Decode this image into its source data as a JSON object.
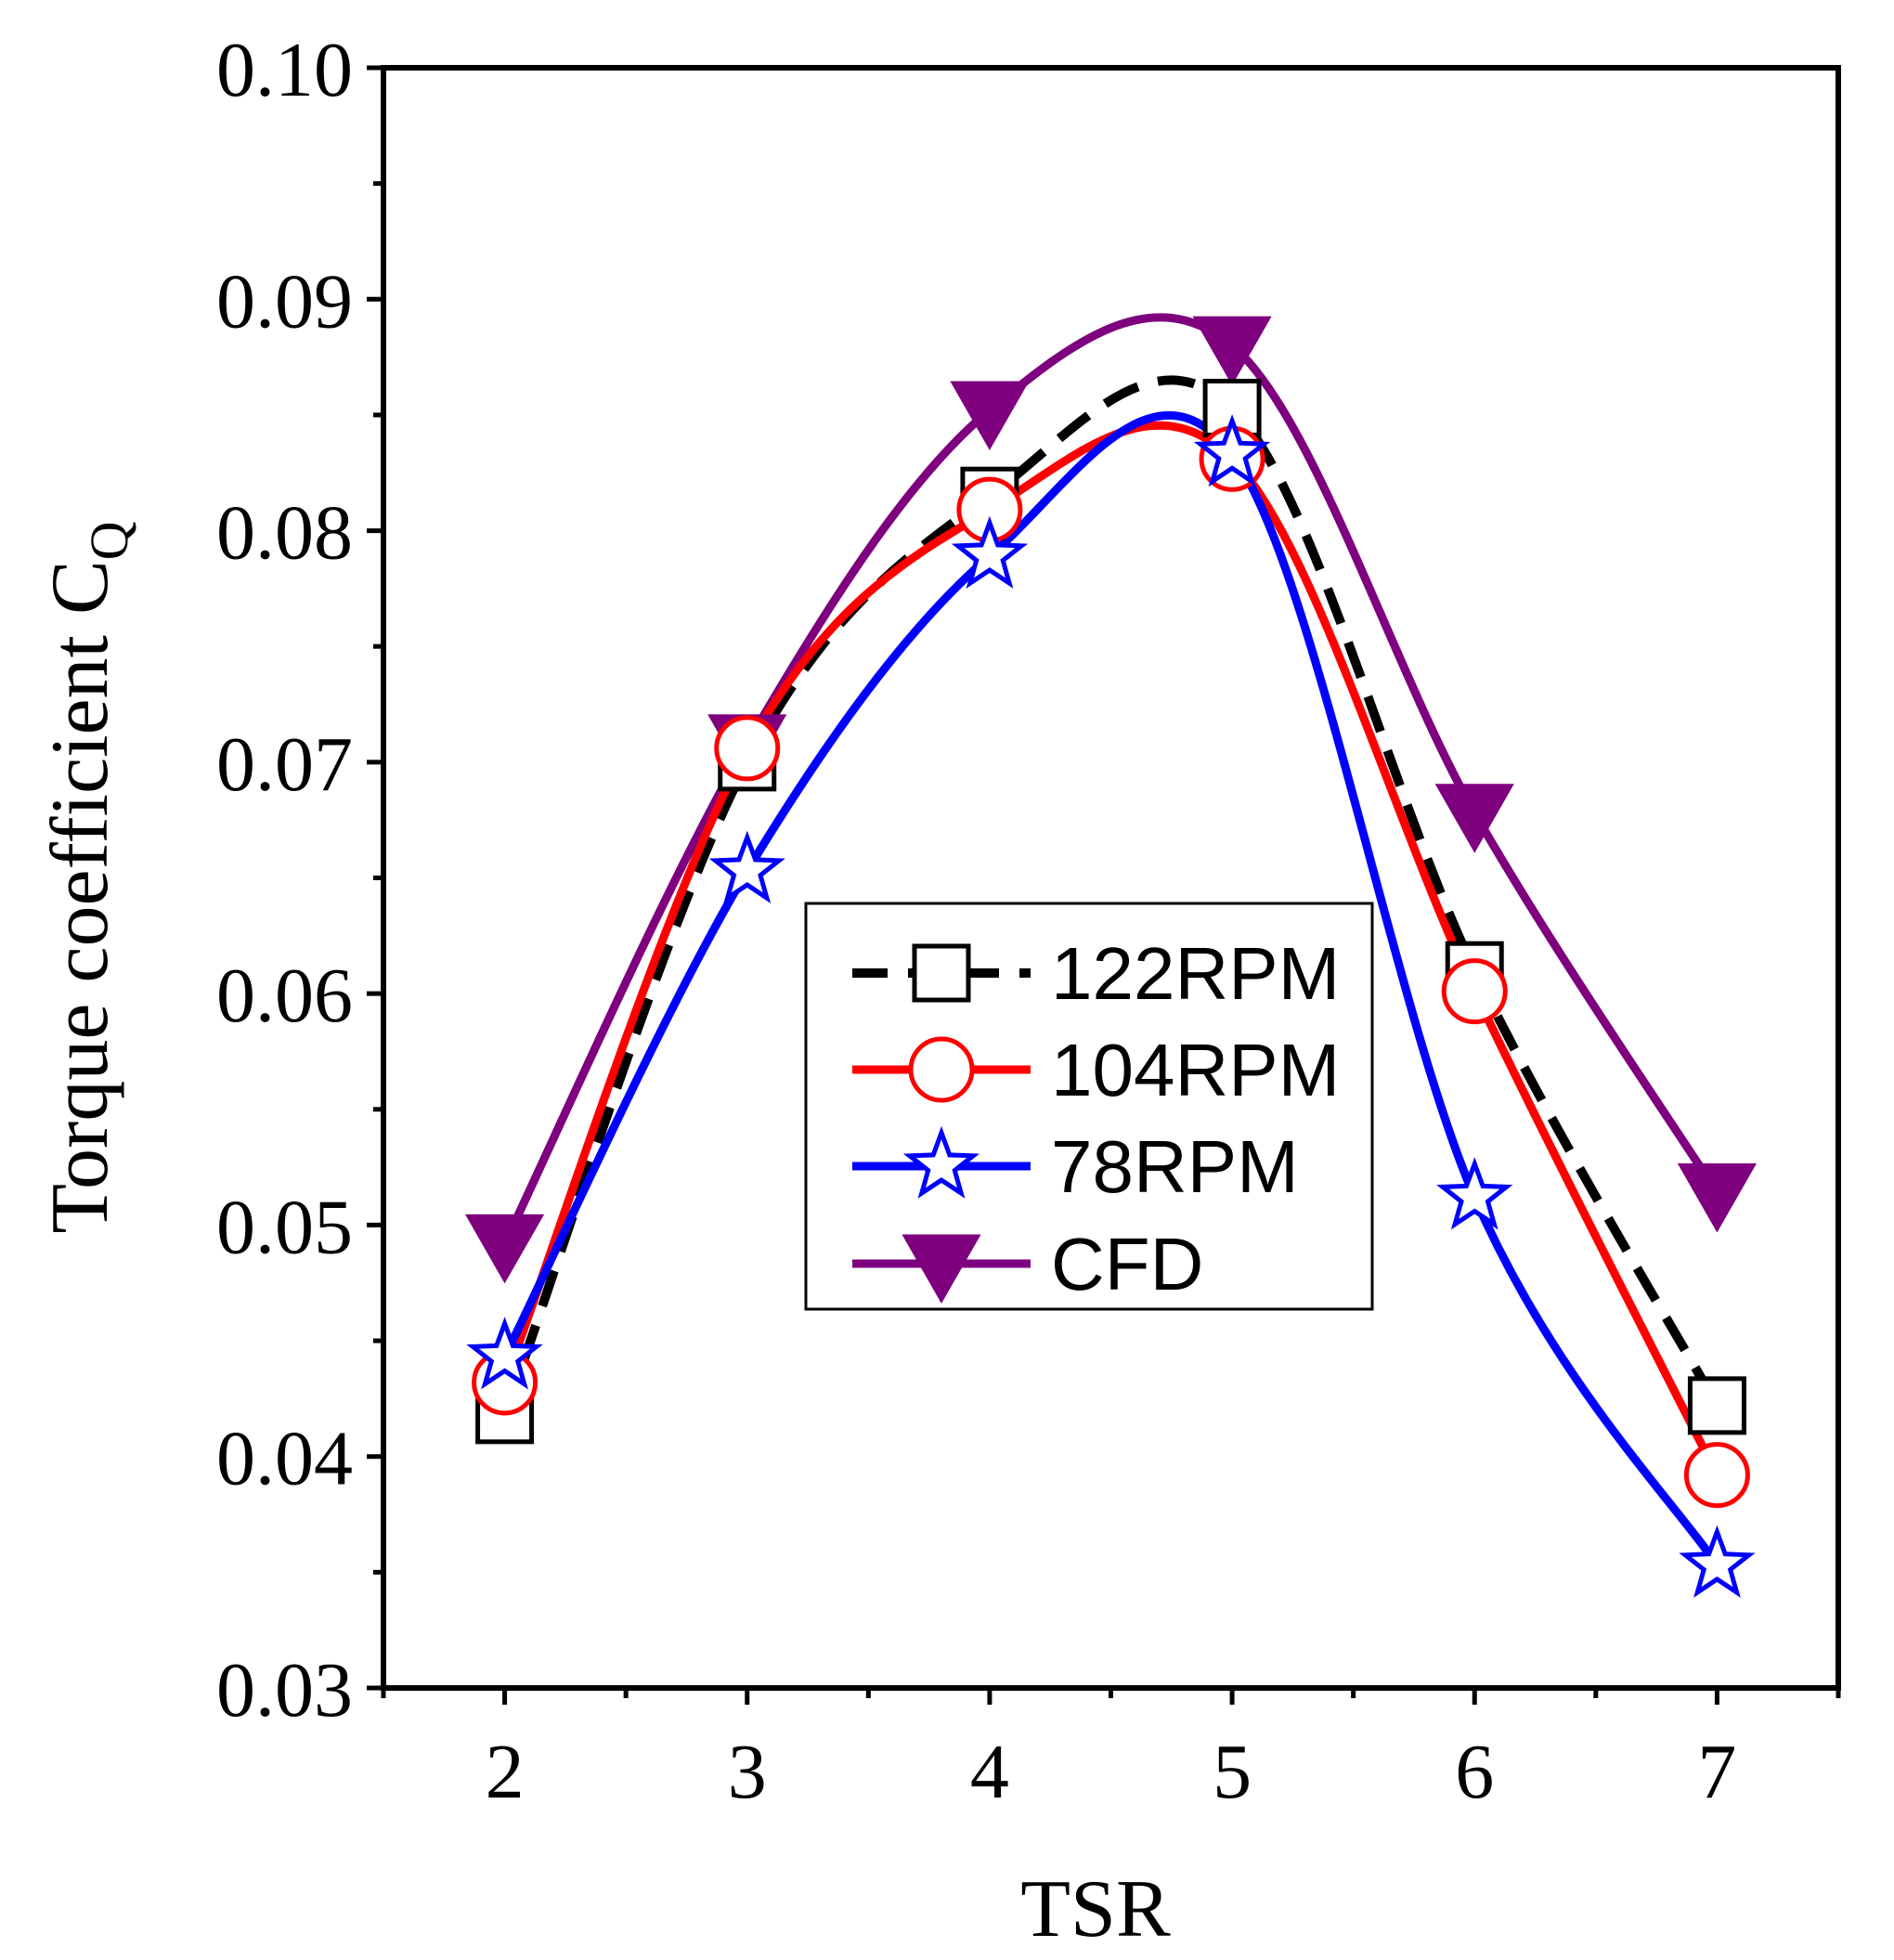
{
  "chart_data": {
    "type": "line",
    "xlabel": "TSR",
    "ylabel": "Torque coefficient C",
    "ylabel_sub": "Q",
    "xlim": [
      1.5,
      7.5
    ],
    "ylim": [
      0.03,
      0.1
    ],
    "x_ticks": [
      2,
      3,
      4,
      5,
      6,
      7
    ],
    "x_tick_labels": [
      "2",
      "3",
      "4",
      "5",
      "6",
      "7"
    ],
    "y_ticks": [
      0.03,
      0.04,
      0.05,
      0.06,
      0.07,
      0.08,
      0.09,
      0.1
    ],
    "y_tick_labels": [
      "0.03",
      "0.04",
      "0.05",
      "0.06",
      "0.07",
      "0.08",
      "0.09",
      "0.10"
    ],
    "grid": false,
    "legend_position": "center-right",
    "x": [
      2,
      3,
      4,
      5,
      6,
      7
    ],
    "series": [
      {
        "name": "122RPM",
        "values": [
          0.0418,
          0.07,
          0.0815,
          0.0853,
          0.061,
          0.0422
        ],
        "color": "#000000",
        "marker": "square",
        "line": "dashed"
      },
      {
        "name": "104RPM",
        "values": [
          0.0432,
          0.0706,
          0.0809,
          0.0831,
          0.0601,
          0.0392
        ],
        "color": "#ff0000",
        "marker": "circle",
        "line": "solid"
      },
      {
        "name": "78RPM",
        "values": [
          0.0443,
          0.0653,
          0.0789,
          0.0833,
          0.0512,
          0.0353
        ],
        "color": "#0000ff",
        "marker": "star",
        "line": "solid"
      },
      {
        "name": "CFD",
        "values": [
          0.0492,
          0.0708,
          0.0852,
          0.088,
          0.0678,
          0.0514
        ],
        "color": "#7f007f",
        "marker": "triangle-down",
        "line": "solid"
      }
    ]
  }
}
